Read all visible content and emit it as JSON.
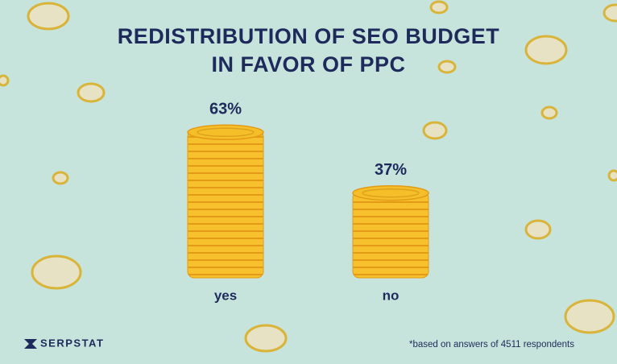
{
  "chart_data": {
    "type": "bar",
    "title": [
      "REDISTRIBUTION OF SEO BUDGET",
      "IN FAVOR OF PPC"
    ],
    "categories": [
      "yes",
      "no"
    ],
    "values": [
      63,
      37
    ],
    "value_labels": [
      "63%",
      "37%"
    ],
    "color": "#f5bf2a",
    "footnote": "*based on answers of 4511 respondents",
    "brand": "SERPSTAT"
  }
}
